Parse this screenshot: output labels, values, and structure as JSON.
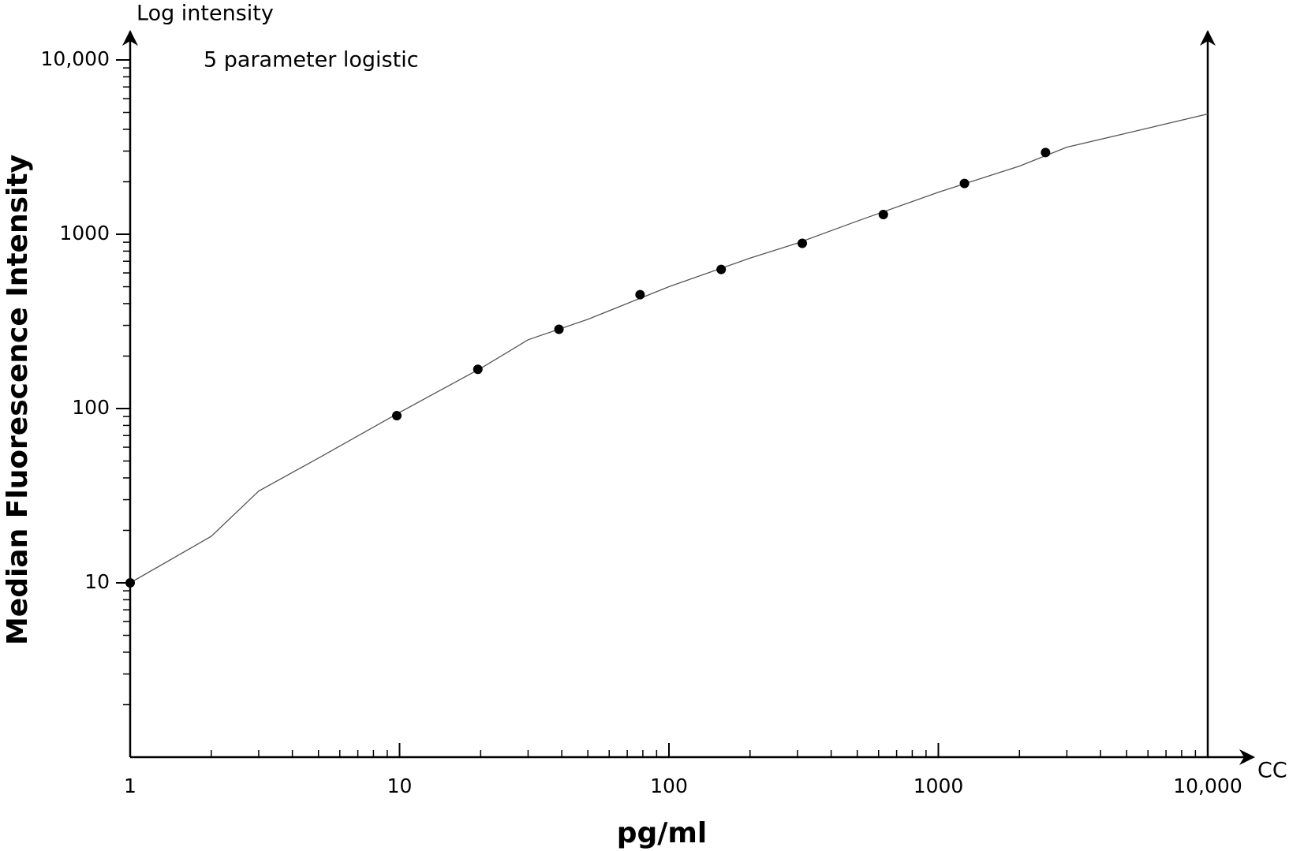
{
  "chart_data": {
    "type": "scatter",
    "top_label": "Log intensity",
    "annotation": "5 parameter logistic",
    "x_axis_label": "pg/ml",
    "y_axis_label": "Median Fluorescence Intensity",
    "x_end_label": "CC",
    "log_x": true,
    "log_y": true,
    "xlim": [
      1,
      10000
    ],
    "ylim": [
      1,
      10000
    ],
    "xticks": [
      1,
      10,
      100,
      1000,
      {
        "value": 10000,
        "label": "10,000"
      }
    ],
    "yticks": [
      10,
      100,
      1000,
      {
        "value": 10000,
        "label": "10,000"
      }
    ],
    "points": {
      "color": "#000000",
      "x": [
        1,
        9.77,
        19.53,
        39.06,
        78.13,
        156.25,
        312.5,
        625,
        1250,
        2500
      ],
      "y": [
        10,
        91,
        168,
        285,
        450,
        628,
        887,
        1297,
        1955,
        2945
      ]
    },
    "fit_curve": {
      "color": "#555555",
      "x": [
        1,
        2,
        3,
        5,
        10,
        20,
        30,
        50,
        100,
        200,
        300,
        500,
        1000,
        2000,
        3000,
        5000,
        10000
      ],
      "y": [
        10,
        18.5,
        33.6,
        52,
        95,
        170,
        248,
        325,
        500,
        730,
        890,
        1190,
        1740,
        2460,
        3160,
        3800,
        4900
      ]
    }
  }
}
